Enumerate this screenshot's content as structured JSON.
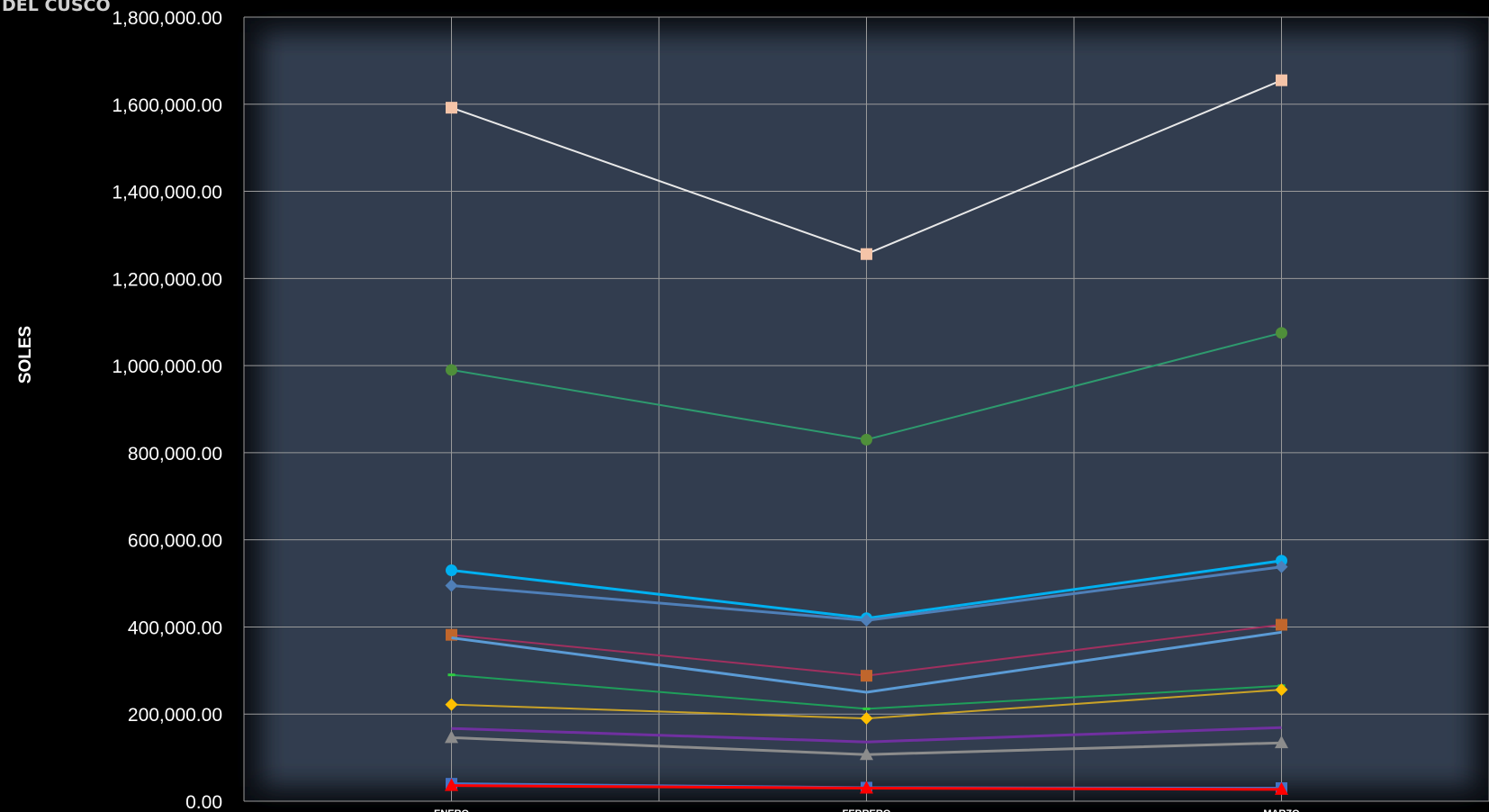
{
  "watermark": "DEL CUSCO",
  "chart_data": {
    "type": "line",
    "title": "",
    "xlabel": "",
    "ylabel": "SOLES",
    "categories": [
      "ENERO",
      "FEBRERO",
      "MARZO"
    ],
    "ylim": [
      0,
      1800000
    ],
    "yticks": [
      0,
      200000,
      400000,
      600000,
      800000,
      1000000,
      1200000,
      1400000,
      1600000,
      1800000
    ],
    "ytick_labels": [
      "0.00",
      "200,000.00",
      "400,000.00",
      "600,000.00",
      "800,000.00",
      "1,000,000.00",
      "1,200,000.00",
      "1,400,000.00",
      "1,600,000.00",
      "1,800,000.00"
    ],
    "grid": true,
    "legend": "none",
    "series": [
      {
        "values": [
          1592000,
          1256000,
          1655000
        ],
        "line_color": "#e8e8e8",
        "marker_color": "#f5c4a8",
        "marker": "square",
        "width": 2
      },
      {
        "values": [
          990000,
          830000,
          1075000
        ],
        "line_color": "#2e9a6e",
        "marker_color": "#4f8f3a",
        "marker": "circle",
        "width": 2
      },
      {
        "values": [
          530000,
          420000,
          552000
        ],
        "line_color": "#00b0f0",
        "marker_color": "#00b0f0",
        "marker": "circle",
        "width": 3
      },
      {
        "values": [
          495000,
          415000,
          538000
        ],
        "line_color": "#4f7fb8",
        "marker_color": "#4f7fb8",
        "marker": "diamond",
        "width": 3
      },
      {
        "values": [
          382000,
          288000,
          405000
        ],
        "line_color": "#a0305f",
        "marker_color": "#c0662c",
        "marker": "square",
        "width": 2
      },
      {
        "values": [
          375000,
          250000,
          388000
        ],
        "line_color": "#5b9bd5",
        "marker_color": "#5b9bd5",
        "marker": "none",
        "width": 3
      },
      {
        "values": [
          290000,
          212000,
          265000
        ],
        "line_color": "#1f9e5a",
        "marker_color": "#2ecc40",
        "marker": "dash",
        "width": 2
      },
      {
        "values": [
          222000,
          190000,
          256000
        ],
        "line_color": "#c9a227",
        "marker_color": "#ffc000",
        "marker": "diamond",
        "width": 2
      },
      {
        "values": [
          167000,
          136000,
          169000
        ],
        "line_color": "#7030a0",
        "marker_color": "#7030a0",
        "marker": "none",
        "width": 3
      },
      {
        "values": [
          146000,
          107000,
          134000
        ],
        "line_color": "#8c8c8c",
        "marker_color": "#8c8c8c",
        "marker": "triangle",
        "width": 3
      },
      {
        "values": [
          40000,
          31000,
          30000
        ],
        "line_color": "#4472c4",
        "marker_color": "#4472c4",
        "marker": "square",
        "width": 3
      },
      {
        "values": [
          36000,
          30000,
          27000
        ],
        "line_color": "#ff0000",
        "marker_color": "#ff0000",
        "marker": "triangle",
        "width": 3
      }
    ]
  }
}
